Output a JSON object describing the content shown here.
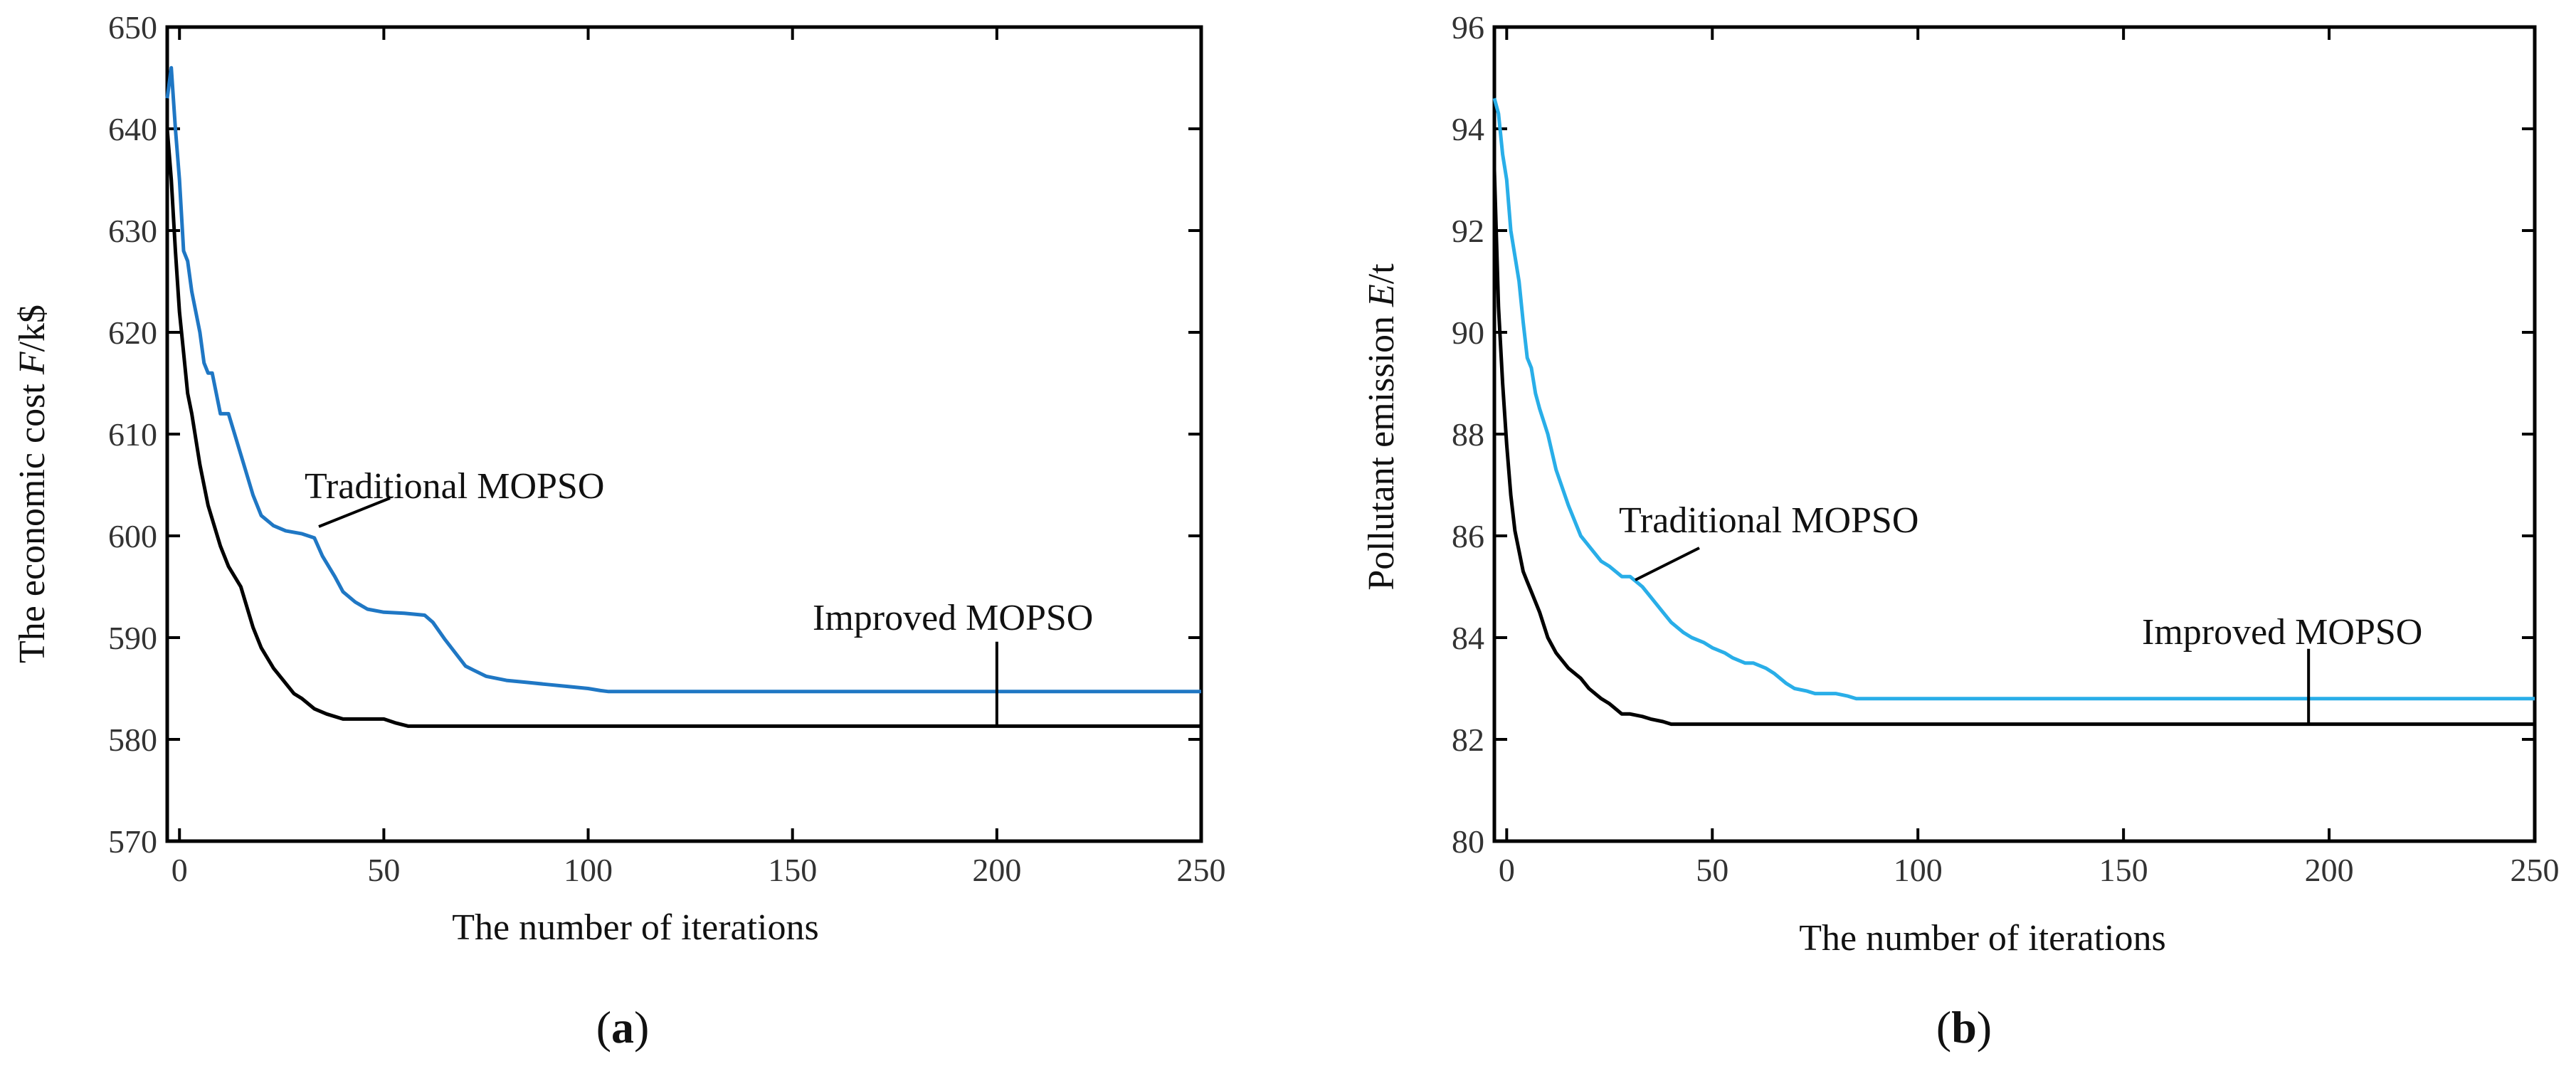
{
  "chart_data": [
    {
      "type": "line",
      "panel_label": "a",
      "xlabel": "The number of iterations",
      "ylabel_prefix": "The economic cost ",
      "ylabel_var": "F",
      "ylabel_suffix": "/k$",
      "xlim": [
        -3,
        250
      ],
      "ylim": [
        570,
        650
      ],
      "xticks": [
        0,
        50,
        100,
        150,
        200,
        250
      ],
      "yticks": [
        570,
        580,
        590,
        600,
        610,
        620,
        630,
        640,
        650
      ],
      "series": [
        {
          "name": "Traditional MOPSO",
          "color": "#1f77c4",
          "x": [
            -3,
            -2,
            -1,
            0,
            1,
            2,
            3,
            4,
            5,
            6,
            7,
            8,
            10,
            12,
            15,
            18,
            20,
            23,
            26,
            30,
            33,
            35,
            38,
            40,
            43,
            46,
            50,
            55,
            60,
            62,
            65,
            70,
            72,
            75,
            80,
            85,
            90,
            95,
            100,
            103,
            105,
            110,
            150,
            200,
            250
          ],
          "y": [
            643,
            646,
            640,
            635,
            628,
            627,
            624,
            622,
            620,
            617,
            616,
            616,
            612,
            612,
            608,
            604,
            602,
            601,
            600.5,
            600.2,
            599.8,
            598,
            596,
            594.5,
            593.5,
            592.8,
            592.5,
            592.4,
            592.2,
            591.5,
            589.8,
            587.2,
            586.8,
            586.2,
            585.8,
            585.6,
            585.4,
            585.2,
            585,
            584.8,
            584.7,
            584.7,
            584.7,
            584.7,
            584.7
          ]
        },
        {
          "name": "Improved MOPSO",
          "color": "#000000",
          "x": [
            -3,
            -2,
            -1,
            0,
            1,
            2,
            3,
            5,
            7,
            10,
            12,
            15,
            18,
            20,
            23,
            25,
            28,
            30,
            33,
            36,
            40,
            43,
            46,
            50,
            53,
            56,
            60,
            100,
            150,
            200,
            250
          ],
          "y": [
            640,
            635,
            628,
            622,
            618,
            614,
            612,
            607,
            603,
            599,
            597,
            595,
            591,
            589,
            587,
            586,
            584.5,
            584,
            583,
            582.5,
            582,
            582,
            582,
            582,
            581.6,
            581.3,
            581.3,
            581.3,
            581.3,
            581.3,
            581.3
          ]
        }
      ],
      "annotations": {
        "traditional": "Traditional MOPSO",
        "improved": "Improved MOPSO"
      }
    },
    {
      "type": "line",
      "panel_label": "b",
      "xlabel": "The number of iterations",
      "ylabel_prefix": "Pollutant emission ",
      "ylabel_var": "E",
      "ylabel_suffix": "/t",
      "xlim": [
        -3,
        250
      ],
      "ylim": [
        80,
        96
      ],
      "xticks": [
        0,
        50,
        100,
        150,
        200,
        250
      ],
      "yticks": [
        80,
        82,
        84,
        86,
        88,
        90,
        92,
        94,
        96
      ],
      "series": [
        {
          "name": "Traditional MOPSO",
          "color": "#29aee8",
          "x": [
            -3,
            -2,
            -1,
            0,
            1,
            2,
            3,
            4,
            5,
            6,
            7,
            8,
            10,
            12,
            15,
            18,
            20,
            23,
            25,
            28,
            30,
            33,
            35,
            38,
            40,
            43,
            45,
            48,
            50,
            53,
            55,
            58,
            60,
            63,
            65,
            68,
            70,
            73,
            75,
            78,
            80,
            83,
            85,
            90,
            100,
            150,
            200,
            250
          ],
          "y": [
            94.6,
            94.3,
            93.5,
            93,
            92,
            91.5,
            91,
            90.2,
            89.5,
            89.3,
            88.8,
            88.5,
            88,
            87.3,
            86.6,
            86,
            85.8,
            85.5,
            85.4,
            85.2,
            85.2,
            85,
            84.8,
            84.5,
            84.3,
            84.1,
            84,
            83.9,
            83.8,
            83.7,
            83.6,
            83.5,
            83.5,
            83.4,
            83.3,
            83.1,
            83,
            82.95,
            82.9,
            82.9,
            82.9,
            82.85,
            82.8,
            82.8,
            82.8,
            82.8,
            82.8,
            82.8
          ]
        },
        {
          "name": "Improved MOPSO",
          "color": "#000000",
          "x": [
            -3,
            -2,
            -1,
            0,
            1,
            2,
            3,
            4,
            5,
            6,
            8,
            10,
            12,
            15,
            18,
            20,
            23,
            25,
            28,
            30,
            33,
            35,
            38,
            40,
            50,
            100,
            150,
            200,
            250
          ],
          "y": [
            93.2,
            90.5,
            89,
            87.8,
            86.8,
            86.1,
            85.7,
            85.3,
            85.1,
            84.9,
            84.5,
            84,
            83.7,
            83.4,
            83.2,
            83,
            82.8,
            82.7,
            82.5,
            82.5,
            82.45,
            82.4,
            82.35,
            82.3,
            82.3,
            82.3,
            82.3,
            82.3,
            82.3
          ]
        }
      ],
      "annotations": {
        "traditional": "Traditional MOPSO",
        "improved": "Improved MOPSO"
      }
    }
  ]
}
